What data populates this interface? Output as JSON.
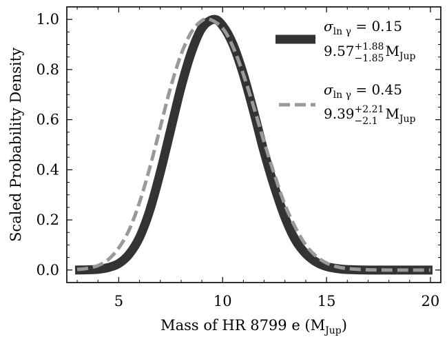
{
  "chart_data": {
    "type": "line",
    "xlabel": "Mass of HR 8799 e (M",
    "xlabel_sub": "Jup",
    "xlabel_close": ")",
    "ylabel": "Scaled Probability Density",
    "xlim": [
      2.5,
      20.5
    ],
    "ylim": [
      -0.05,
      1.05
    ],
    "x_ticks": [
      5,
      10,
      15,
      20
    ],
    "x_tick_labels": [
      "5",
      "10",
      "15",
      "20"
    ],
    "y_ticks": [
      0.0,
      0.2,
      0.4,
      0.6,
      0.8,
      1.0
    ],
    "y_tick_labels": [
      "0.0",
      "0.2",
      "0.4",
      "0.6",
      "0.8",
      "1.0"
    ],
    "grid": false,
    "legend_position": "top-right",
    "series": [
      {
        "legend_line1": "σ",
        "legend_line1_sub": "ln γ",
        "legend_line1_rest": " = 0.15",
        "legend_line2_value": "9.57",
        "legend_line2_sup": "+1.88",
        "legend_line2_sub": "−1.85",
        "legend_line2_unit": "M",
        "legend_line2_unit_sub": "Jup",
        "color": "#333333",
        "style": "solid",
        "x": [
          2.9,
          3.5,
          4.0,
          4.5,
          5.0,
          5.5,
          6.0,
          6.5,
          7.0,
          7.5,
          8.0,
          8.5,
          9.0,
          9.57,
          10.0,
          10.5,
          11.0,
          11.5,
          12.0,
          12.5,
          13.0,
          13.5,
          14.0,
          14.5,
          15.0,
          15.5,
          16.0,
          17.0,
          18.0,
          19.0,
          20.1
        ],
        "y": [
          0.0,
          0.001,
          0.003,
          0.01,
          0.026,
          0.063,
          0.13,
          0.24,
          0.39,
          0.56,
          0.73,
          0.87,
          0.965,
          1.0,
          0.975,
          0.9,
          0.78,
          0.63,
          0.47,
          0.33,
          0.21,
          0.12,
          0.065,
          0.032,
          0.014,
          0.006,
          0.002,
          0.0,
          0.0,
          0.0,
          0.0
        ]
      },
      {
        "legend_line1": "σ",
        "legend_line1_sub": "ln γ",
        "legend_line1_rest": " = 0.45",
        "legend_line2_value": "9.39",
        "legend_line2_sup": "+2.21",
        "legend_line2_sub": "−2.1",
        "legend_line2_unit": "M",
        "legend_line2_unit_sub": "Jup",
        "color": "#999999",
        "style": "dashed",
        "x": [
          3.0,
          3.5,
          4.0,
          4.5,
          5.0,
          5.5,
          6.0,
          6.5,
          7.0,
          7.5,
          8.0,
          8.5,
          9.0,
          9.39,
          10.0,
          10.5,
          11.0,
          11.5,
          12.0,
          12.5,
          13.0,
          13.5,
          14.0,
          14.5,
          15.0,
          15.5,
          16.0,
          17.0,
          18.0,
          19.0,
          20.0
        ],
        "y": [
          0.002,
          0.007,
          0.018,
          0.042,
          0.088,
          0.16,
          0.27,
          0.41,
          0.57,
          0.73,
          0.86,
          0.95,
          0.995,
          1.0,
          0.965,
          0.89,
          0.78,
          0.65,
          0.51,
          0.38,
          0.26,
          0.17,
          0.1,
          0.055,
          0.028,
          0.013,
          0.006,
          0.001,
          0.0,
          0.0,
          0.0
        ]
      }
    ]
  }
}
